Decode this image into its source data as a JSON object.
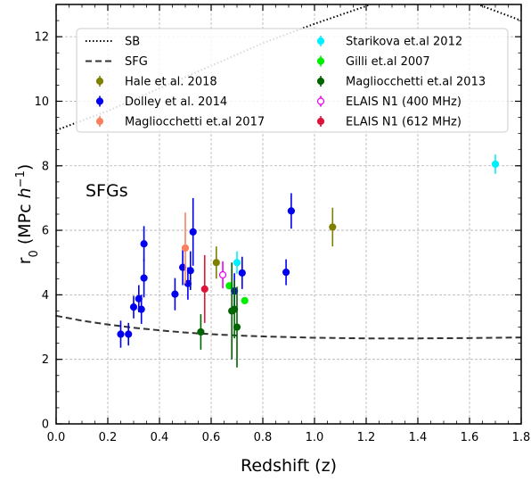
{
  "chart_data": {
    "type": "scatter",
    "title": "",
    "xlabel": "Redshift (z)",
    "ylabel": "r0 (MPc h^-1)",
    "ylabel_main": "r",
    "ylabel_sub": "0",
    "ylabel_unit": " (MPc ",
    "ylabel_h": "h",
    "ylabel_exp": "−1",
    "ylabel_close": ")",
    "xlim": [
      0.0,
      1.8
    ],
    "ylim": [
      0,
      13
    ],
    "xticks": [
      0.0,
      0.2,
      0.4,
      0.6,
      0.8,
      1.0,
      1.2,
      1.4,
      1.6,
      1.8
    ],
    "yticks": [
      0,
      2,
      4,
      6,
      8,
      10,
      12
    ],
    "xtick_labels": [
      "0.0",
      "0.2",
      "0.4",
      "0.6",
      "0.8",
      "1.0",
      "1.2",
      "1.4",
      "1.6",
      "1.8"
    ],
    "ytick_labels": [
      "0",
      "2",
      "4",
      "6",
      "8",
      "10",
      "12"
    ],
    "grid": true,
    "annotation": "SFGs",
    "legend_position": "top",
    "lines": [
      {
        "name": "SB",
        "style": "dotted",
        "color": "#000000",
        "x": [
          0.0,
          0.2,
          0.4,
          0.6,
          0.8,
          1.0,
          1.2,
          1.3,
          1.4,
          1.6,
          1.8
        ],
        "y": [
          9.1,
          9.7,
          10.4,
          11.1,
          11.8,
          12.4,
          12.95,
          13.3,
          13.4,
          13.1,
          12.5
        ]
      },
      {
        "name": "SFG",
        "style": "dashed",
        "color": "#333333",
        "x": [
          0.0,
          0.1,
          0.2,
          0.3,
          0.4,
          0.5,
          0.6,
          0.7,
          0.8,
          1.0,
          1.2,
          1.4,
          1.6,
          1.8
        ],
        "y": [
          3.35,
          3.2,
          3.08,
          2.98,
          2.9,
          2.83,
          2.78,
          2.74,
          2.71,
          2.67,
          2.65,
          2.65,
          2.66,
          2.68
        ]
      }
    ],
    "series": [
      {
        "name": "Hale et al. 2018",
        "color": "#808000",
        "open": false,
        "points": [
          {
            "x": 0.62,
            "y": 5.0,
            "e": 0.5
          },
          {
            "x": 1.07,
            "y": 6.1,
            "e": 0.6
          }
        ]
      },
      {
        "name": "Dolley et al. 2014",
        "color": "#0000ee",
        "open": false,
        "points": [
          {
            "x": 0.25,
            "y": 2.78,
            "e": 0.42
          },
          {
            "x": 0.28,
            "y": 2.78,
            "e": 0.35
          },
          {
            "x": 0.3,
            "y": 3.62,
            "e": 0.35
          },
          {
            "x": 0.32,
            "y": 3.88,
            "e": 0.42
          },
          {
            "x": 0.33,
            "y": 3.55,
            "e": 0.45
          },
          {
            "x": 0.34,
            "y": 4.52,
            "e": 0.6
          },
          {
            "x": 0.34,
            "y": 5.58,
            "e": 0.55
          },
          {
            "x": 0.46,
            "y": 4.02,
            "e": 0.5
          },
          {
            "x": 0.49,
            "y": 4.85,
            "e": 0.55
          },
          {
            "x": 0.51,
            "y": 4.35,
            "e": 0.5
          },
          {
            "x": 0.52,
            "y": 4.75,
            "e": 0.6
          },
          {
            "x": 0.53,
            "y": 5.95,
            "e": 1.05
          },
          {
            "x": 0.69,
            "y": 4.12,
            "e": 0.55
          },
          {
            "x": 0.72,
            "y": 4.68,
            "e": 0.5
          },
          {
            "x": 0.89,
            "y": 4.7,
            "e": 0.4
          },
          {
            "x": 0.91,
            "y": 6.6,
            "e": 0.55
          }
        ]
      },
      {
        "name": "Magliocchetti et.al 2017",
        "color": "#fa8060",
        "open": false,
        "points": [
          {
            "x": 0.5,
            "y": 5.45,
            "e": 1.1
          }
        ]
      },
      {
        "name": "Starikova et.al 2012",
        "color": "#00f0ff",
        "open": false,
        "points": [
          {
            "x": 1.7,
            "y": 8.05,
            "e": 0.3
          },
          {
            "x": 0.7,
            "y": 5.0,
            "e": 0.35
          }
        ]
      },
      {
        "name": "Gilli et.al 2007",
        "color": "#00ee00",
        "open": false,
        "points": [
          {
            "x": 0.67,
            "y": 4.28,
            "e": 0.1
          },
          {
            "x": 0.73,
            "y": 3.82,
            "e": 0.1
          }
        ]
      },
      {
        "name": "Magliocchetti et.al 2013",
        "color": "#006400",
        "open": false,
        "points": [
          {
            "x": 0.56,
            "y": 2.85,
            "e": 0.55
          },
          {
            "x": 0.68,
            "y": 3.5,
            "e": 1.5
          },
          {
            "x": 0.69,
            "y": 3.55,
            "e": 0.9
          },
          {
            "x": 0.7,
            "y": 3.0,
            "e": 1.25
          }
        ]
      },
      {
        "name": "ELAIS N1 (400 MHz)",
        "color": "#ee00ee",
        "open": true,
        "points": [
          {
            "x": 0.645,
            "y": 4.62,
            "e": 0.42
          }
        ]
      },
      {
        "name": "ELAIS N1 (612 MHz)",
        "color": "#dc143c",
        "open": false,
        "points": [
          {
            "x": 0.575,
            "y": 4.18,
            "e": 1.05
          }
        ]
      }
    ]
  }
}
